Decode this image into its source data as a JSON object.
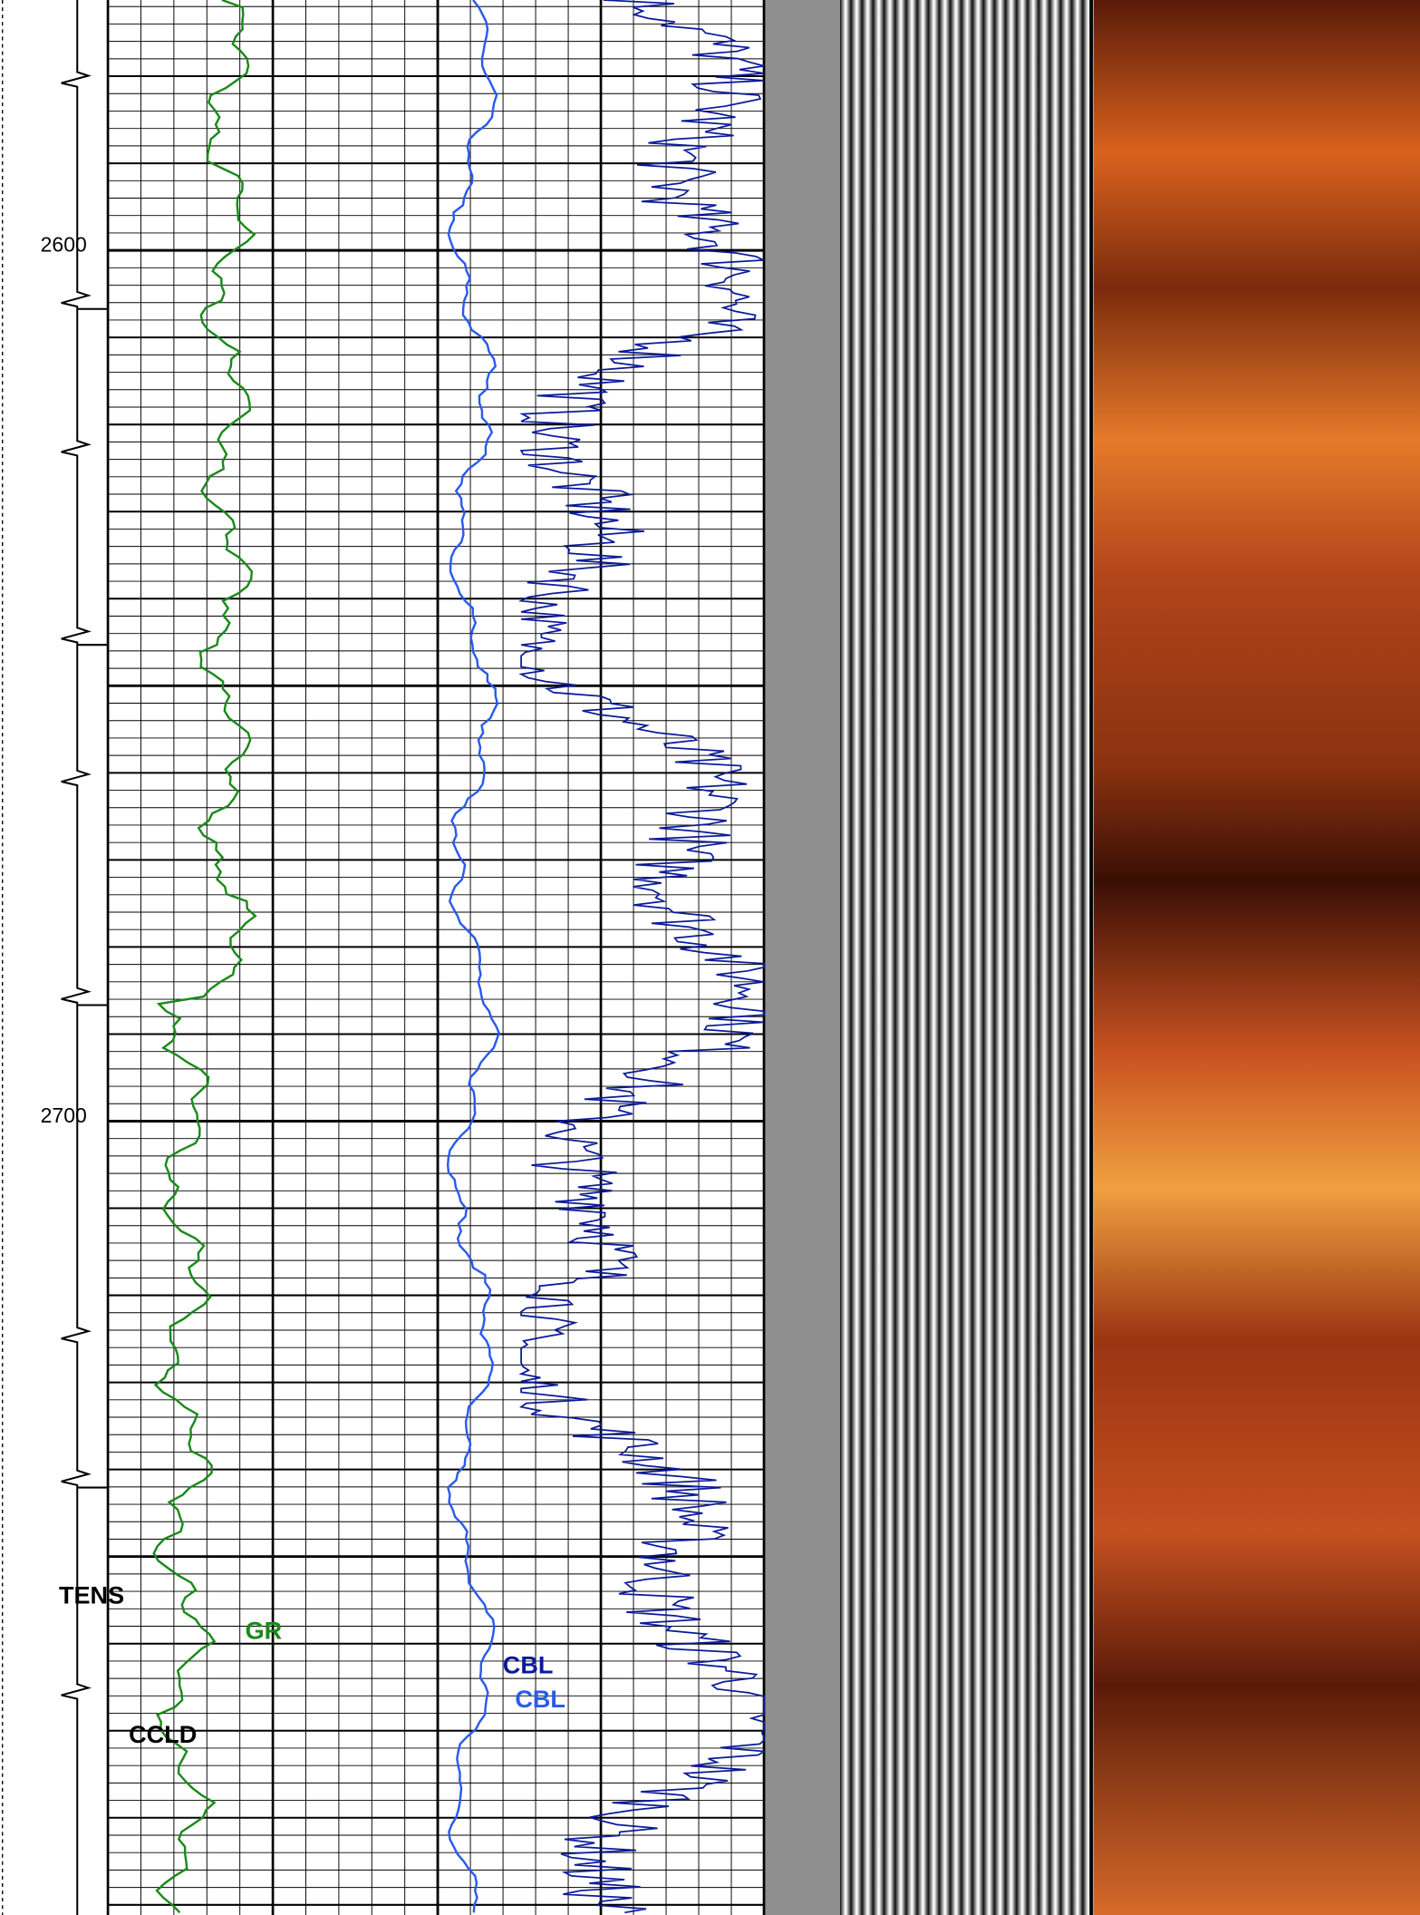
{
  "depth_labels": [
    "2600",
    "2700"
  ],
  "curve_labels": {
    "tens": "TENS",
    "gr": "GR",
    "cbl_amp": "CBL",
    "cbl": "CBL",
    "ccld": "CCLD"
  }
}
